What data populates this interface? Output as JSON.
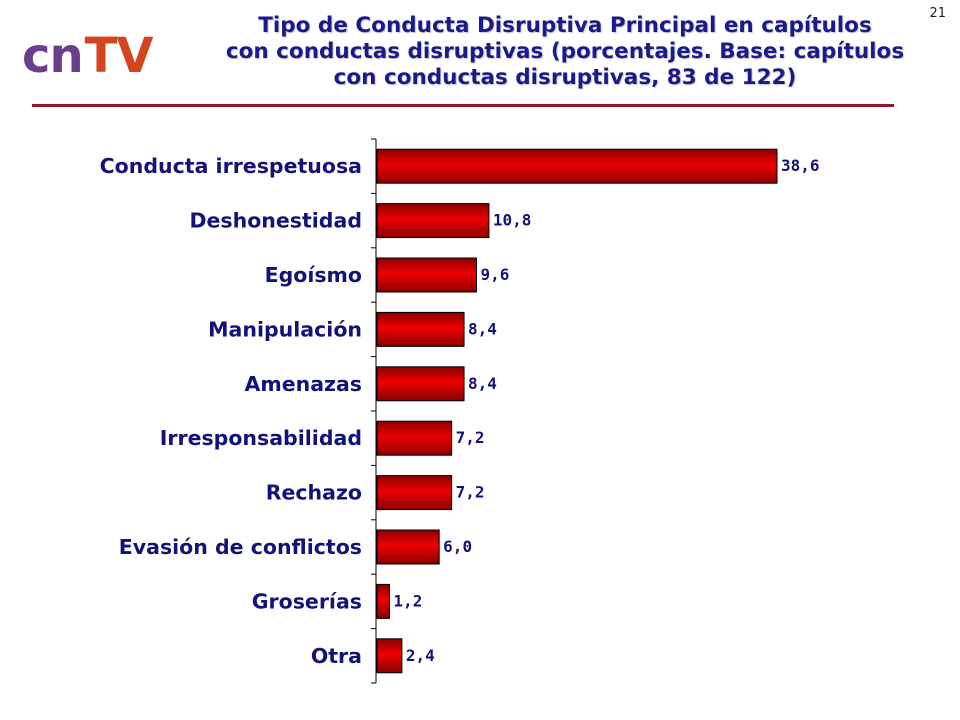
{
  "page_number": "21",
  "logo": {
    "part1": "cn",
    "part2": "TV"
  },
  "title_lines": [
    "Tipo de Conducta Disruptiva Principal en capítulos",
    "con conductas disruptivas (porcentajes. Base: capítulos",
    "con conductas disruptivas, 83 de 122)"
  ],
  "colors": {
    "bar": "#ee0000",
    "bar_dark": "#8a0000",
    "text": "#12127a",
    "rule": "#8b1a2b"
  },
  "chart_data": {
    "type": "bar",
    "orientation": "horizontal",
    "categories": [
      "Conducta irrespetuosa",
      "Deshonestidad",
      "Egoísmo",
      "Manipulación",
      "Amenazas",
      "Irresponsabilidad",
      "Rechazo",
      "Evasión de conflictos",
      "Groserías",
      "Otra"
    ],
    "values": [
      38.6,
      10.8,
      9.6,
      8.4,
      8.4,
      7.2,
      7.2,
      6.0,
      1.2,
      2.4
    ],
    "value_labels": [
      "38,6",
      "10,8",
      "9,6",
      "8,4",
      "8,4",
      "7,2",
      "7,2",
      "6,0",
      "1,2",
      "2,4"
    ],
    "xlim": [
      0,
      38.6
    ],
    "grid": false,
    "legend": "none"
  }
}
